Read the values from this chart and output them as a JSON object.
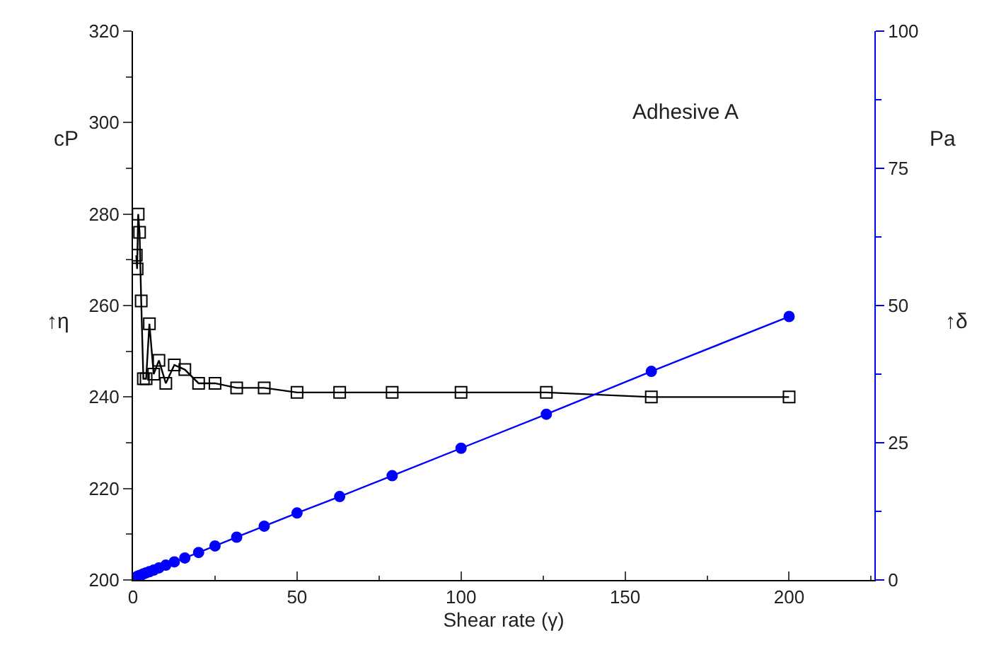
{
  "chart_data": {
    "type": "line",
    "xlabel": "Shear rate (γ)",
    "ylabel": "cP",
    "y2label": "Pa",
    "annotations": [
      "Adhesive A",
      "↑η",
      "↑δ"
    ],
    "x": [
      1,
      1.26,
      1.58,
      2,
      2.5,
      3.16,
      4,
      5,
      6.3,
      7.9,
      10,
      12.6,
      15.8,
      20,
      25,
      31.6,
      40,
      50,
      63,
      79,
      100,
      126,
      158,
      200
    ],
    "series": [
      {
        "color": "#000000",
        "marker": "square",
        "values": [
          271,
          268,
          280,
          276,
          261,
          244,
          244,
          256,
          245,
          248,
          243,
          247,
          246,
          243,
          243,
          242,
          242,
          241,
          241,
          241,
          241,
          241,
          240,
          240
        ]
      },
      {
        "color": "#0000ff",
        "marker": "circle",
        "axis": "y2",
        "values": [
          0.5,
          0.6,
          0.7,
          0.8,
          0.9,
          1.1,
          1.3,
          1.5,
          1.8,
          2.2,
          2.7,
          3.3,
          4.0,
          5.0,
          6.2,
          7.8,
          9.8,
          12.2,
          15.2,
          19,
          24,
          30.2,
          38,
          48
        ]
      }
    ],
    "xlim": [
      0,
      226
    ],
    "xticks": [
      0,
      50,
      100,
      150,
      200
    ],
    "ylim": [
      200,
      320
    ],
    "yticks": [
      200,
      220,
      240,
      260,
      280,
      300,
      320
    ],
    "y2lim": [
      0,
      100
    ],
    "y2ticks": [
      0,
      25,
      50,
      75,
      100
    ],
    "legend": false,
    "line_style": "solid"
  }
}
